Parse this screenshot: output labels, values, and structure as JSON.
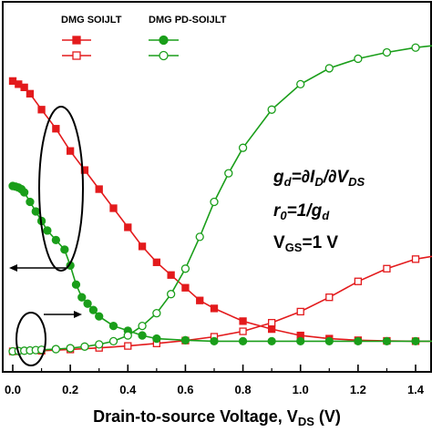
{
  "chart_data": {
    "type": "line",
    "xlabel": {
      "main": "Drain-to-source Voltage, V",
      "sub": "DS",
      "unit": " (V)"
    },
    "ylabel": "",
    "xlim": [
      -0.02,
      1.52
    ],
    "ylim": [
      0,
      1
    ],
    "x_ticks": [
      "0.0",
      "0.2",
      "0.4",
      "0.6",
      "0.8",
      "1.0",
      "1.2",
      "1.4"
    ],
    "y_ticks_labeled": false,
    "grid": false,
    "legend": {
      "position": "top-left",
      "groups": [
        {
          "label": "DMG SOIJLT",
          "color": "#e31a1c"
        },
        {
          "label": "DMG PD-SOIJLT",
          "color": "#1a9e1a"
        }
      ]
    },
    "series": [
      {
        "group": "DMG SOIJLT",
        "color": "#e31a1c",
        "marker": "square",
        "filled": true,
        "x": [
          0.0,
          0.02,
          0.04,
          0.06,
          0.1,
          0.15,
          0.2,
          0.25,
          0.3,
          0.35,
          0.4,
          0.45,
          0.5,
          0.55,
          0.6,
          0.65,
          0.7,
          0.8,
          0.9,
          1.0,
          1.1,
          1.2,
          1.3,
          1.4,
          1.5
        ],
        "y": [
          0.88,
          0.87,
          0.86,
          0.84,
          0.79,
          0.73,
          0.66,
          0.6,
          0.54,
          0.48,
          0.42,
          0.36,
          0.31,
          0.27,
          0.23,
          0.19,
          0.165,
          0.125,
          0.1,
          0.08,
          0.07,
          0.065,
          0.063,
          0.062,
          0.062
        ]
      },
      {
        "group": "DMG SOIJLT",
        "color": "#e31a1c",
        "marker": "square",
        "filled": false,
        "x": [
          0.0,
          0.1,
          0.2,
          0.3,
          0.4,
          0.5,
          0.6,
          0.7,
          0.8,
          0.9,
          1.0,
          1.1,
          1.2,
          1.3,
          1.4,
          1.5
        ],
        "y": [
          0.03,
          0.032,
          0.036,
          0.041,
          0.047,
          0.055,
          0.064,
          0.076,
          0.093,
          0.12,
          0.155,
          0.2,
          0.25,
          0.29,
          0.32,
          0.335
        ]
      },
      {
        "group": "DMG PD-SOIJLT",
        "color": "#1a9e1a",
        "marker": "circle",
        "filled": true,
        "x": [
          0.0,
          0.01,
          0.02,
          0.03,
          0.04,
          0.06,
          0.08,
          0.1,
          0.12,
          0.15,
          0.18,
          0.2,
          0.22,
          0.24,
          0.26,
          0.28,
          0.3,
          0.35,
          0.4,
          0.45,
          0.5,
          0.6,
          0.7,
          0.8,
          0.9,
          1.0,
          1.1,
          1.2,
          1.3,
          1.4,
          1.5
        ],
        "y": [
          0.55,
          0.548,
          0.545,
          0.54,
          0.53,
          0.5,
          0.47,
          0.44,
          0.41,
          0.38,
          0.35,
          0.3,
          0.24,
          0.2,
          0.18,
          0.16,
          0.14,
          0.11,
          0.095,
          0.08,
          0.07,
          0.065,
          0.062,
          0.062,
          0.062,
          0.062,
          0.062,
          0.062,
          0.062,
          0.062,
          0.062
        ]
      },
      {
        "group": "DMG PD-SOIJLT",
        "color": "#1a9e1a",
        "marker": "circle",
        "filled": false,
        "x": [
          0.0,
          0.02,
          0.04,
          0.06,
          0.08,
          0.1,
          0.15,
          0.2,
          0.25,
          0.3,
          0.35,
          0.4,
          0.45,
          0.5,
          0.55,
          0.6,
          0.65,
          0.7,
          0.75,
          0.8,
          0.9,
          1.0,
          1.1,
          1.2,
          1.3,
          1.4,
          1.5
        ],
        "y": [
          0.03,
          0.031,
          0.032,
          0.033,
          0.034,
          0.035,
          0.037,
          0.04,
          0.045,
          0.052,
          0.062,
          0.08,
          0.11,
          0.15,
          0.21,
          0.29,
          0.39,
          0.5,
          0.59,
          0.67,
          0.79,
          0.87,
          0.92,
          0.95,
          0.97,
          0.985,
          0.995
        ]
      }
    ],
    "annotations": {
      "line1": {
        "g": "g",
        "g_sub": "d",
        "eq": "=∂I",
        "i_sub": "D",
        "slash": "/∂V",
        "v_sub": "DS"
      },
      "line2": {
        "r": "r",
        "r_sub": "0",
        "eq": "=1/g",
        "g_sub": "d"
      },
      "line3": {
        "v": "V",
        "v_sub": "GS",
        "eq": "=1 V"
      }
    }
  }
}
